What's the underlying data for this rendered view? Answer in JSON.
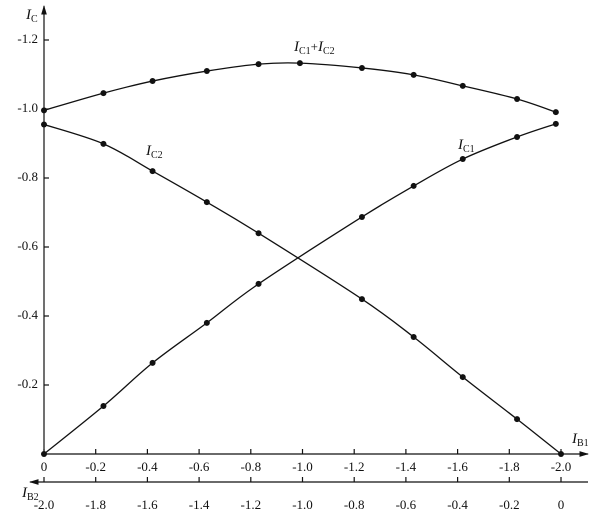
{
  "chart_data": {
    "type": "line",
    "y_label": "IC",
    "x_label": "IB1",
    "x2_label": "IB2",
    "xlim": [
      0,
      -2
    ],
    "x2lim": [
      -2,
      0
    ],
    "ylim": [
      0,
      -1.25
    ],
    "xticks": [
      0,
      -0.2,
      -0.4,
      -0.6,
      -0.8,
      {
        "value": -1,
        "label": "-1.0"
      },
      -1.2,
      -1.4,
      -1.6,
      -1.8,
      {
        "value": -2,
        "label": "-2.0"
      }
    ],
    "x2ticks": [
      {
        "value": -2,
        "label": "-2.0"
      },
      -1.8,
      -1.6,
      -1.4,
      -1.2,
      {
        "value": -1,
        "label": "-1.0"
      },
      -0.8,
      -0.6,
      -0.4,
      -0.2,
      0
    ],
    "yticks": [
      -0.2,
      -0.4,
      -0.6,
      -0.8,
      {
        "value": -1,
        "label": "-1.0"
      },
      -1.2
    ],
    "series": [
      {
        "name": "IC1",
        "color": "#111111",
        "x": [
          0,
          -0.23,
          -0.42,
          -0.63,
          -0.83,
          -1.23,
          -1.43,
          -1.62,
          -1.83,
          -1.98
        ],
        "values": [
          0,
          -0.139,
          -0.264,
          -0.38,
          -0.493,
          -0.687,
          -0.777,
          -0.855,
          -0.919,
          -0.957
        ]
      },
      {
        "name": "IC2",
        "color": "#111111",
        "x": [
          0,
          -0.23,
          -0.42,
          -0.63,
          -0.83,
          -1.23,
          -1.43,
          -1.62,
          -1.83,
          -2
        ],
        "values": [
          -0.955,
          -0.899,
          -0.82,
          -0.73,
          -0.64,
          -0.449,
          -0.339,
          -0.223,
          -0.101,
          0
        ]
      },
      {
        "name": "IC1+IC2",
        "color": "#111111",
        "x": [
          0,
          -0.23,
          -0.42,
          -0.63,
          -0.83,
          -0.99,
          -1.23,
          -1.43,
          -1.62,
          -1.83,
          -1.98
        ],
        "values": [
          -0.996,
          -1.046,
          -1.081,
          -1.11,
          -1.13,
          -1.133,
          -1.119,
          -1.099,
          -1.067,
          -1.029,
          -0.991
        ]
      }
    ]
  }
}
